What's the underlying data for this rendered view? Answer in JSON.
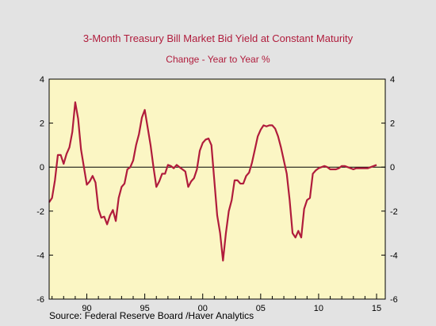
{
  "chart_data": {
    "type": "line",
    "title": "3-Month Treasury Bill Market Bid Yield at Constant Maturity",
    "subtitle": "Change - Year to Year    %",
    "source": "Source:  Federal Reserve Board /Haver Analytics",
    "xlim": [
      1986.75,
      2015.75
    ],
    "ylim": [
      -6,
      4
    ],
    "x_ticks": [
      {
        "value": 1990,
        "label": "90"
      },
      {
        "value": 1995,
        "label": "95"
      },
      {
        "value": 2000,
        "label": "00"
      },
      {
        "value": 2005,
        "label": "05"
      },
      {
        "value": 2010,
        "label": "10"
      },
      {
        "value": 2015,
        "label": "15"
      }
    ],
    "y_ticks": [
      {
        "value": 4,
        "label": "4"
      },
      {
        "value": 2,
        "label": "2"
      },
      {
        "value": 0,
        "label": "0"
      },
      {
        "value": -2,
        "label": "-2"
      },
      {
        "value": -4,
        "label": "-4"
      },
      {
        "value": -6,
        "label": "-6"
      }
    ],
    "zero_line": true,
    "grid": false,
    "colors": {
      "line": "#b01c3c",
      "plot_bg": "#fbf6c4",
      "title": "#b01c3c"
    },
    "series": [
      {
        "values": [
          [
            1986.75,
            -1.6
          ],
          [
            1987.0,
            -1.4
          ],
          [
            1987.25,
            -0.6
          ],
          [
            1987.5,
            0.55
          ],
          [
            1987.75,
            0.55
          ],
          [
            1988.0,
            0.15
          ],
          [
            1988.25,
            0.6
          ],
          [
            1988.5,
            0.9
          ],
          [
            1988.75,
            1.6
          ],
          [
            1989.0,
            2.95
          ],
          [
            1989.25,
            2.2
          ],
          [
            1989.5,
            0.8
          ],
          [
            1989.75,
            0.0
          ],
          [
            1990.0,
            -0.8
          ],
          [
            1990.25,
            -0.65
          ],
          [
            1990.5,
            -0.4
          ],
          [
            1990.75,
            -0.7
          ],
          [
            1991.0,
            -1.9
          ],
          [
            1991.25,
            -2.3
          ],
          [
            1991.5,
            -2.25
          ],
          [
            1991.75,
            -2.6
          ],
          [
            1992.0,
            -2.2
          ],
          [
            1992.25,
            -1.95
          ],
          [
            1992.5,
            -2.45
          ],
          [
            1992.75,
            -1.4
          ],
          [
            1993.0,
            -0.9
          ],
          [
            1993.25,
            -0.75
          ],
          [
            1993.5,
            -0.1
          ],
          [
            1993.75,
            0.0
          ],
          [
            1994.0,
            0.3
          ],
          [
            1994.25,
            1.0
          ],
          [
            1994.5,
            1.5
          ],
          [
            1994.75,
            2.25
          ],
          [
            1995.0,
            2.6
          ],
          [
            1995.25,
            1.8
          ],
          [
            1995.5,
            1.0
          ],
          [
            1995.75,
            0.0
          ],
          [
            1996.0,
            -0.9
          ],
          [
            1996.25,
            -0.65
          ],
          [
            1996.5,
            -0.3
          ],
          [
            1996.75,
            -0.3
          ],
          [
            1997.0,
            0.1
          ],
          [
            1997.25,
            0.05
          ],
          [
            1997.5,
            -0.05
          ],
          [
            1997.75,
            0.1
          ],
          [
            1998.0,
            0.0
          ],
          [
            1998.25,
            -0.1
          ],
          [
            1998.5,
            -0.2
          ],
          [
            1998.75,
            -0.9
          ],
          [
            1999.0,
            -0.65
          ],
          [
            1999.25,
            -0.5
          ],
          [
            1999.5,
            -0.1
          ],
          [
            1999.75,
            0.75
          ],
          [
            2000.0,
            1.1
          ],
          [
            2000.25,
            1.25
          ],
          [
            2000.5,
            1.3
          ],
          [
            2000.75,
            1.0
          ],
          [
            2001.0,
            -0.6
          ],
          [
            2001.25,
            -2.2
          ],
          [
            2001.5,
            -3.0
          ],
          [
            2001.75,
            -4.25
          ],
          [
            2002.0,
            -3.0
          ],
          [
            2002.25,
            -2.0
          ],
          [
            2002.5,
            -1.5
          ],
          [
            2002.75,
            -0.6
          ],
          [
            2003.0,
            -0.6
          ],
          [
            2003.25,
            -0.75
          ],
          [
            2003.5,
            -0.75
          ],
          [
            2003.75,
            -0.4
          ],
          [
            2004.0,
            -0.25
          ],
          [
            2004.25,
            0.2
          ],
          [
            2004.5,
            0.8
          ],
          [
            2004.75,
            1.4
          ],
          [
            2005.0,
            1.7
          ],
          [
            2005.25,
            1.9
          ],
          [
            2005.5,
            1.85
          ],
          [
            2005.75,
            1.9
          ],
          [
            2006.0,
            1.9
          ],
          [
            2006.25,
            1.75
          ],
          [
            2006.5,
            1.4
          ],
          [
            2006.75,
            0.9
          ],
          [
            2007.0,
            0.3
          ],
          [
            2007.25,
            -0.3
          ],
          [
            2007.5,
            -1.5
          ],
          [
            2007.75,
            -3.0
          ],
          [
            2008.0,
            -3.2
          ],
          [
            2008.25,
            -2.9
          ],
          [
            2008.5,
            -3.2
          ],
          [
            2008.75,
            -1.9
          ],
          [
            2009.0,
            -1.5
          ],
          [
            2009.25,
            -1.4
          ],
          [
            2009.5,
            -0.3
          ],
          [
            2009.75,
            -0.15
          ],
          [
            2010.0,
            -0.05
          ],
          [
            2010.25,
            0.0
          ],
          [
            2010.5,
            0.05
          ],
          [
            2010.75,
            0.0
          ],
          [
            2011.0,
            -0.1
          ],
          [
            2011.25,
            -0.1
          ],
          [
            2011.5,
            -0.1
          ],
          [
            2011.75,
            -0.05
          ],
          [
            2012.0,
            0.05
          ],
          [
            2012.25,
            0.05
          ],
          [
            2012.5,
            0.0
          ],
          [
            2012.75,
            -0.05
          ],
          [
            2013.0,
            -0.1
          ],
          [
            2013.25,
            -0.05
          ],
          [
            2013.5,
            -0.05
          ],
          [
            2013.75,
            -0.05
          ],
          [
            2014.0,
            -0.05
          ],
          [
            2014.25,
            -0.05
          ],
          [
            2014.5,
            0.0
          ],
          [
            2014.75,
            0.05
          ],
          [
            2015.0,
            0.1
          ]
        ]
      }
    ]
  }
}
